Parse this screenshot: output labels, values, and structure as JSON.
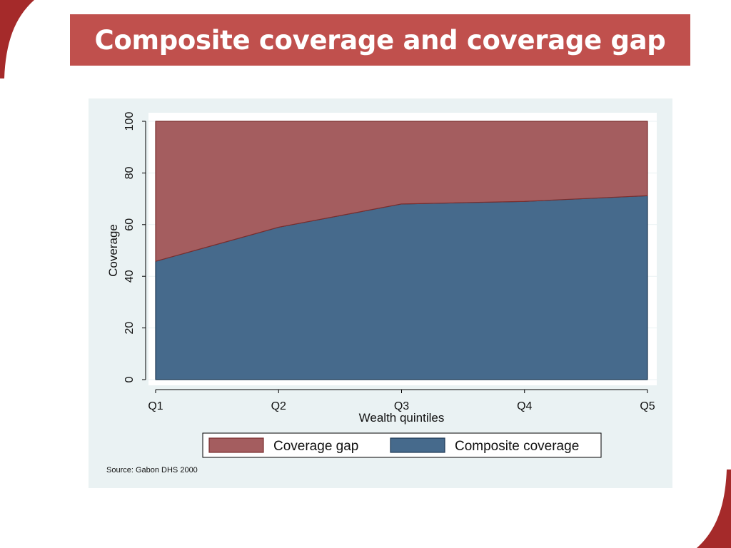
{
  "slide": {
    "title": "Composite coverage and coverage gap",
    "accent_color": "#c0504d",
    "corner_color": "#a52a2a"
  },
  "chart_data": {
    "type": "area",
    "categories": [
      "Q1",
      "Q2",
      "Q3",
      "Q4",
      "Q5"
    ],
    "series": [
      {
        "name": "Composite coverage",
        "values": [
          45.8,
          59.0,
          68.0,
          69.0,
          71.2
        ],
        "color": "#466a8c"
      },
      {
        "name": "Coverage gap",
        "values": [
          54.2,
          41.0,
          32.0,
          31.0,
          28.8
        ],
        "color": "#a45d5f"
      }
    ],
    "stacked": true,
    "xlabel": "Wealth quintiles",
    "ylabel": "Coverage",
    "ylim": [
      0,
      100
    ],
    "yticks": [
      0,
      20,
      40,
      60,
      80,
      100
    ],
    "legend": {
      "placement": "bottom",
      "entries": [
        "Coverage gap",
        "Composite coverage"
      ]
    },
    "note": "Source: Gabon DHS 2000",
    "grid": true
  }
}
